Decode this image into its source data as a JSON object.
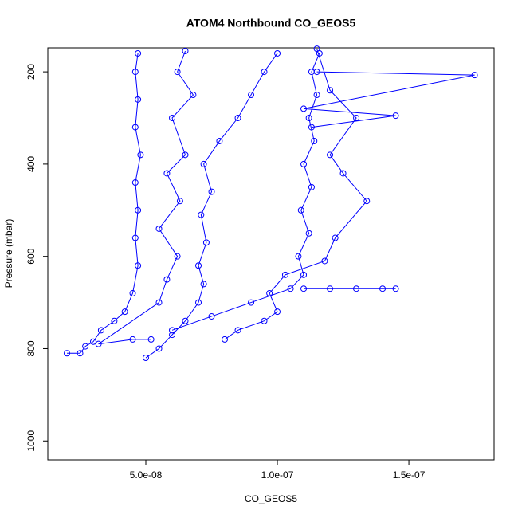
{
  "chart_data": {
    "type": "line",
    "title": "ATOM4 Northbound CO_GEOS5",
    "xlabel": "CO_GEOS5",
    "ylabel": "Pressure (mbar)",
    "color": "#0000ff",
    "marker": "circle",
    "x": [
      2e-08,
      2.5e-08,
      2.7e-08,
      3e-08,
      3.3e-08,
      3.8e-08,
      4.2e-08,
      4.5e-08,
      4.7e-08,
      4.6e-08,
      4.7e-08,
      4.6e-08,
      4.8e-08,
      4.6e-08,
      4.7e-08,
      4.6e-08,
      4.7e-08,
      null,
      5e-08,
      5.5e-08,
      6e-08,
      6.5e-08,
      7e-08,
      7.2e-08,
      7e-08,
      7.3e-08,
      7.1e-08,
      7.5e-08,
      7.2e-08,
      7.8e-08,
      8.5e-08,
      9e-08,
      9.5e-08,
      1e-07,
      null,
      6e-08,
      7.5e-08,
      9e-08,
      1.05e-07,
      1.1e-07,
      1.08e-07,
      1.12e-07,
      1.09e-07,
      1.13e-07,
      1.1e-07,
      1.14e-07,
      1.12e-07,
      1.15e-07,
      1.13e-07,
      1.16e-07,
      null,
      1.1e-07,
      1.2e-07,
      1.3e-07,
      1.4e-07,
      1.45e-07,
      null,
      1.15e-07,
      1.75e-07,
      1.1e-07,
      1.45e-07,
      1.13e-07,
      null,
      8e-08,
      8.5e-08,
      9.5e-08,
      1e-07,
      9.7e-08,
      1.03e-07,
      1.18e-07,
      1.22e-07,
      1.34e-07,
      1.25e-07,
      1.2e-07,
      1.3e-07,
      1.2e-07,
      1.15e-07,
      null,
      5.2e-08,
      4.5e-08,
      3.2e-08,
      5.5e-08,
      5.8e-08,
      6.2e-08,
      5.5e-08,
      6.3e-08,
      5.8e-08,
      6.5e-08,
      6e-08,
      6.8e-08,
      6.2e-08,
      6.5e-08
    ],
    "values": [
      810,
      810,
      795,
      785,
      760,
      740,
      720,
      680,
      620,
      560,
      500,
      440,
      380,
      320,
      260,
      200,
      160,
      null,
      820,
      800,
      770,
      740,
      700,
      660,
      620,
      570,
      510,
      460,
      400,
      350,
      300,
      250,
      200,
      160,
      null,
      760,
      730,
      700,
      670,
      640,
      600,
      550,
      500,
      450,
      400,
      350,
      300,
      250,
      200,
      160,
      null,
      670,
      670,
      670,
      670,
      670,
      null,
      200,
      207,
      280,
      295,
      320,
      null,
      780,
      760,
      740,
      720,
      680,
      640,
      610,
      560,
      480,
      420,
      380,
      300,
      240,
      150,
      null,
      780,
      780,
      790,
      700,
      650,
      600,
      540,
      480,
      420,
      380,
      300,
      250,
      200,
      155
    ],
    "xlim": [
      1.273e-08,
      1.824e-07
    ],
    "ylim": [
      1041,
      148
    ],
    "xticks": [
      {
        "value": 5e-08,
        "label": "5.0e-08"
      },
      {
        "value": 1e-07,
        "label": "1.0e-07"
      },
      {
        "value": 1.5e-07,
        "label": "1.5e-07"
      }
    ],
    "yticks": [
      200,
      400,
      600,
      800,
      1000
    ]
  }
}
